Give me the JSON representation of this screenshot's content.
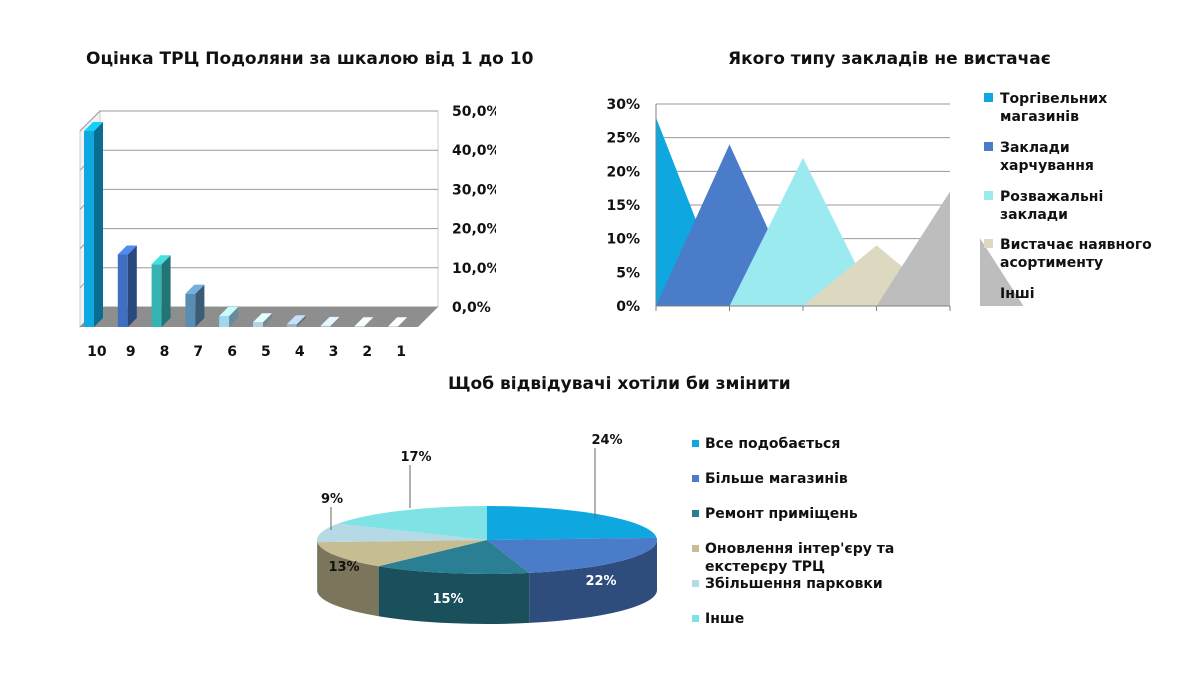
{
  "chart_data": [
    {
      "id": "rating",
      "type": "bar",
      "title": "Оцінка ТРЦ Подоляни за шкалою від 1 до 10",
      "categories": [
        "10",
        "9",
        "8",
        "7",
        "6",
        "5",
        "4",
        "3",
        "2",
        "1"
      ],
      "values": [
        50.0,
        18.5,
        16.0,
        8.5,
        2.8,
        1.2,
        0.7,
        0.3,
        0.2,
        0.2
      ],
      "colors": [
        "#0ea7e0",
        "#3f6fc1",
        "#36b3b3",
        "#5a8db3",
        "#9fd8ee",
        "#b6d0e5",
        "#9fb2c7",
        "#b8c4d0",
        "#c4ccd4",
        "#c9d0d7"
      ],
      "ytick_labels": [
        "0,0%",
        "10,0%",
        "20,0%",
        "30,0%",
        "40,0%",
        "50,0%"
      ],
      "ylim": [
        0,
        50
      ],
      "xlabel": "",
      "ylabel": "",
      "grid": true
    },
    {
      "id": "missing-venues",
      "type": "area",
      "title": "Якого типу закладів не вистачає",
      "series": [
        {
          "name": "Торгівельних магазинів",
          "value": 28,
          "color": "#0ea7e0"
        },
        {
          "name": "Заклади харчування",
          "value": 24,
          "color": "#4a7cc9"
        },
        {
          "name": "Розважальні заклади",
          "value": 22,
          "color": "#9beaf0"
        },
        {
          "name": "Вистачає наявного асортименту",
          "value": 9,
          "color": "#ddd8c0"
        },
        {
          "name": "Інші",
          "value": 17,
          "color": "#bdbdbd"
        }
      ],
      "ytick_labels": [
        "0%",
        "5%",
        "10%",
        "15%",
        "20%",
        "25%",
        "30%"
      ],
      "ylim": [
        0,
        30
      ],
      "legend": "right",
      "grid": true
    },
    {
      "id": "changes",
      "type": "pie",
      "title": "Щоб відвідувачі хотіли би змінити",
      "slices": [
        {
          "label": "Все подобається",
          "value": 24,
          "pct": "24%",
          "color": "#0ea7e0"
        },
        {
          "label": "Більше магазинів",
          "value": 22,
          "pct": "22%",
          "color": "#4a7cc9"
        },
        {
          "label": "Ремонт приміщень",
          "value": 15,
          "pct": "15%",
          "color": "#2a7f95"
        },
        {
          "label": "Оновлення інтер'єру та екстерєру ТРЦ",
          "value": 13,
          "pct": "13%",
          "color": "#c7bd93"
        },
        {
          "label": "Збільшення парковки",
          "value": 9,
          "pct": "9%",
          "color": "#b6d9e6"
        },
        {
          "label": "Інше",
          "value": 17,
          "pct": "17%",
          "color": "#7fe3e6"
        }
      ],
      "legend": "right"
    }
  ]
}
